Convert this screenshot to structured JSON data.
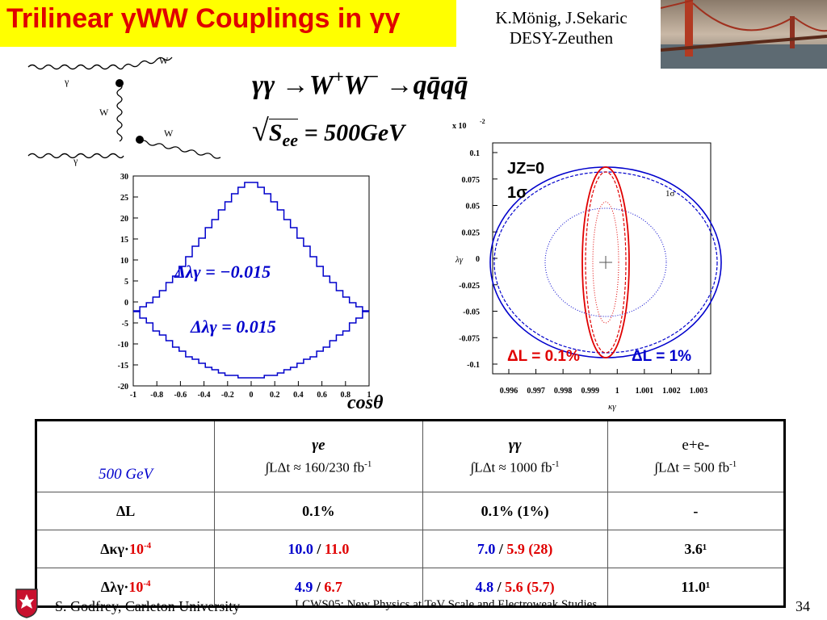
{
  "title": {
    "text": "Trilinear γWW Couplings in γγ"
  },
  "authors": {
    "line1": "K.Mönig, J.Sekaric",
    "line2": "DESY-Zeuthen"
  },
  "diagram": {
    "labels": [
      "γ",
      "γ",
      "W",
      "W",
      "W"
    ]
  },
  "process": {
    "lhs": "γγ",
    "arrow": "→",
    "w_plus": "W",
    "plus_sign": "+",
    "w_minus": "W",
    "minus_sign": "−",
    "rhs": "qq̄qq̄",
    "energy_s": "S",
    "energy_sub": "ee",
    "energy_value": "= 500GeV"
  },
  "left_plot": {
    "y_ticks": [
      "30",
      "25",
      "20",
      "15",
      "10",
      "5",
      "0",
      "-5",
      "-10",
      "-15",
      "-20"
    ],
    "x_ticks": [
      "-1",
      "-0.8",
      "-0.6",
      "-0.4",
      "-0.2",
      "0",
      "0.2",
      "0.4",
      "0.6",
      "0.8",
      "1"
    ],
    "label_top": "Δλγ = −0.015",
    "label_bottom": "Δλγ = 0.015",
    "xlabel": "cosθ"
  },
  "right_plot": {
    "multiplier": "x 10",
    "multiplier_exp": "-2",
    "y_ticks": [
      "0.1",
      "0.075",
      "0.05",
      "0.025",
      "0",
      "-0.025",
      "-0.05",
      "-0.075",
      "-0.1"
    ],
    "x_ticks": [
      "0.996",
      "0.997",
      "0.998",
      "0.999",
      "1",
      "1.001",
      "1.002",
      "1.003"
    ],
    "ylabel": "λγ",
    "xlabel": "κγ",
    "jz": "JZ=0",
    "sigma": "1σ",
    "sigma_small": "1σ",
    "legend_red": "ΔL = 0.1%",
    "legend_blue": "ΔL = 1%",
    "colors": {
      "red": "#e00000",
      "blue": "#0000cc"
    }
  },
  "table": {
    "header": {
      "corner": "500 GeV",
      "col1_title": "γe",
      "col1_sub": "∫LΔt ≈ 160/230 fb",
      "col2_title": "γγ",
      "col2_sub": "∫LΔt ≈ 1000 fb",
      "col3_title": "e+e-",
      "col3_sub": "∫LΔt = 500 fb",
      "exp": "-1"
    },
    "rows": [
      {
        "label": "ΔL",
        "c1": "0.1%",
        "c2": "0.1% (1%)",
        "c3": "-"
      },
      {
        "label": "Δκγ·",
        "label_scale": "10",
        "label_exp": "-4",
        "c1_blue": "10.0",
        "sep": "/",
        "c1_red": "11.0",
        "c2_blue": "7.0",
        "c2_red": "5.9 (28)",
        "c3": "3.6¹"
      },
      {
        "label": "Δλγ·",
        "label_scale": "10",
        "label_exp": "-4",
        "c1_blue": "4.9",
        "sep": "/",
        "c1_red": "6.7",
        "c2_blue": "4.8",
        "c2_red": "5.6 (5.7)",
        "c3": "11.0¹"
      }
    ]
  },
  "footer": {
    "author": "S. Godfrey, Carleton University",
    "conference": "LCWS05: New Physics at TeV Scale and Electroweak Studies",
    "page": "34"
  }
}
